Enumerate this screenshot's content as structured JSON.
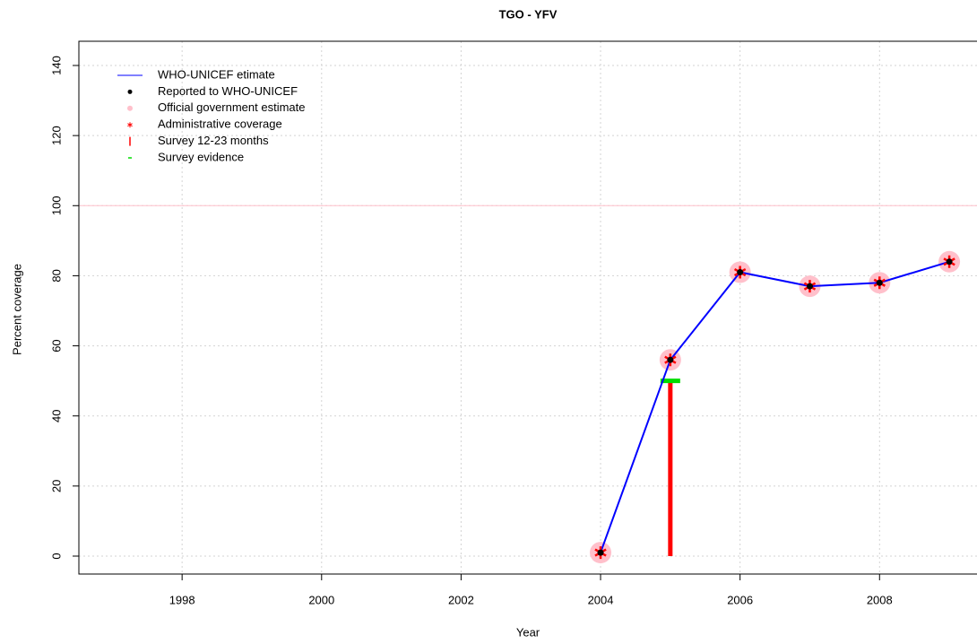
{
  "chart_data": {
    "type": "line",
    "title": "TGO  -  YFV",
    "xlabel": "Year",
    "ylabel": "Percent coverage",
    "x": [
      2004,
      2005,
      2006,
      2007,
      2008,
      2009
    ],
    "series": [
      {
        "name": "WHO-UNICEF etimate",
        "color": "#0000ff",
        "values": [
          1,
          56,
          81,
          77,
          78,
          84
        ]
      },
      {
        "name": "Reported to WHO-UNICEF",
        "color": "#000000",
        "values": [
          1,
          56,
          81,
          77,
          78,
          84
        ]
      },
      {
        "name": "Official government estimate",
        "color": "#ffc0cb",
        "values": [
          1,
          56,
          81,
          77,
          78,
          84
        ]
      },
      {
        "name": "Administrative coverage",
        "color": "#ff0000",
        "values": [
          1,
          56,
          81,
          77,
          78,
          84
        ]
      },
      {
        "name": "Survey 12-23 months",
        "color": "#ff0000",
        "values": [
          null,
          50,
          null,
          null,
          null,
          null
        ]
      },
      {
        "name": "Survey evidence",
        "color": "#00dd00",
        "values": [
          null,
          50,
          null,
          null,
          null,
          null
        ]
      }
    ],
    "reference_line": {
      "value": 100,
      "color": "#ffc0cb"
    },
    "xlim": [
      1996.52,
      2009.5
    ],
    "ylim": [
      0,
      140
    ],
    "xticks": [
      1998,
      2000,
      2002,
      2004,
      2006,
      2008
    ],
    "yticks": [
      0,
      20,
      40,
      60,
      80,
      100,
      120,
      140
    ],
    "grid": true,
    "legend": "top-left"
  }
}
